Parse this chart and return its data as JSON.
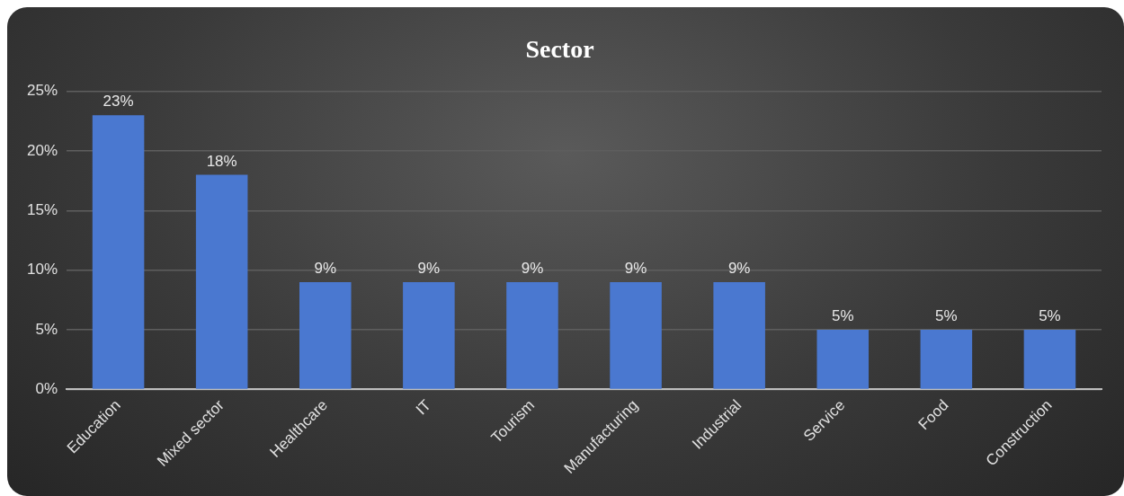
{
  "chart_data": {
    "type": "bar",
    "title": "Sector",
    "categories": [
      "Education",
      "Mixed sector",
      "Healthcare",
      "IT",
      "Tourism",
      "Manufacturing",
      "Industrial",
      "Service",
      "Food",
      "Construction"
    ],
    "values": [
      23,
      18,
      9,
      9,
      9,
      9,
      9,
      5,
      5,
      5
    ],
    "value_labels": [
      "23%",
      "18%",
      "9%",
      "9%",
      "9%",
      "9%",
      "9%",
      "5%",
      "5%",
      "5%"
    ],
    "color": "#4a78d0",
    "ylim": [
      0,
      25
    ],
    "yticks": [
      {
        "value": 0,
        "label": "0%"
      },
      {
        "value": 5,
        "label": "5%"
      },
      {
        "value": 10,
        "label": "10%"
      },
      {
        "value": 15,
        "label": "15%"
      },
      {
        "value": 20,
        "label": "20%"
      },
      {
        "value": 25,
        "label": "25%"
      }
    ],
    "grid": "y",
    "legend": false
  }
}
